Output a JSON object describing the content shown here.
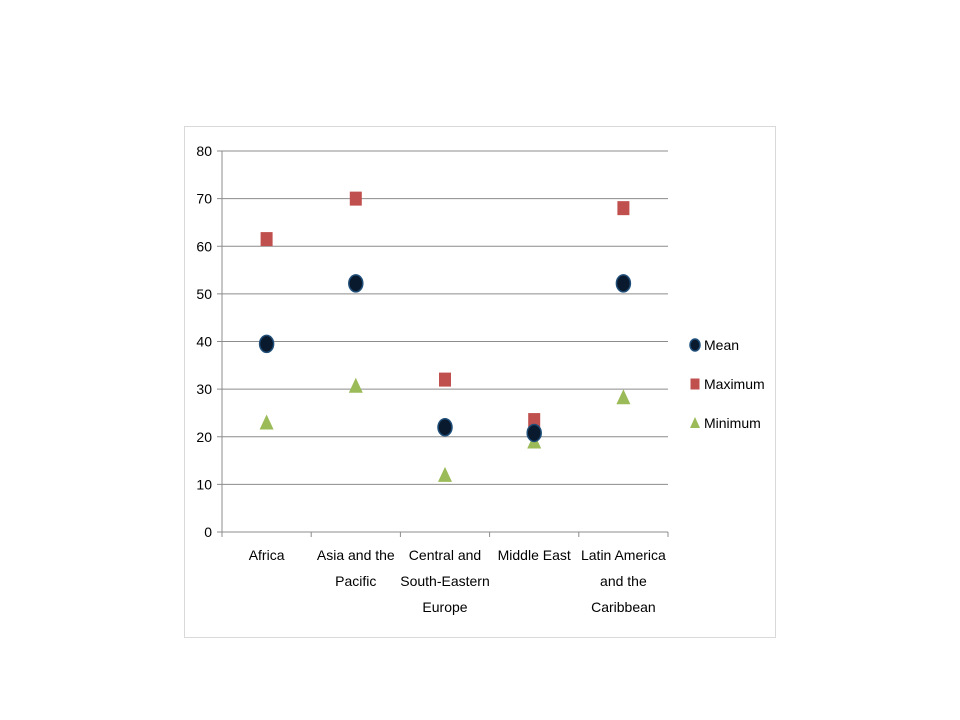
{
  "chart_data": {
    "type": "scatter",
    "categories": [
      [
        "Africa"
      ],
      [
        "Asia and the",
        "Pacific"
      ],
      [
        "Central and",
        "South-Eastern",
        "Europe"
      ],
      [
        "Middle East"
      ],
      [
        "Latin America",
        "and the",
        "Caribbean"
      ]
    ],
    "category_names": [
      "Africa",
      "Asia and the Pacific",
      "Central and South-Eastern Europe",
      "Middle East",
      "Latin America and the Caribbean"
    ],
    "series": [
      {
        "name": "Mean",
        "marker": "circle",
        "color": "#0a1a2e",
        "values": [
          39.5,
          52.2,
          22.0,
          20.8,
          52.2
        ]
      },
      {
        "name": "Maximum",
        "marker": "square",
        "color": "#c0504d",
        "values": [
          61.5,
          70.0,
          32.0,
          23.5,
          68.0
        ]
      },
      {
        "name": "Minimum",
        "marker": "triangle",
        "color": "#9bbb59",
        "values": [
          23.0,
          30.7,
          12.0,
          19.0,
          28.3
        ]
      }
    ],
    "ylim": [
      0,
      80
    ],
    "yticks": [
      "0",
      "10",
      "20",
      "30",
      "40",
      "50",
      "60",
      "70",
      "80"
    ],
    "ytick_values": [
      0,
      10,
      20,
      30,
      40,
      50,
      60,
      70,
      80
    ],
    "grid": true,
    "legend_position": "right",
    "title": "",
    "xlabel": "",
    "ylabel": ""
  }
}
